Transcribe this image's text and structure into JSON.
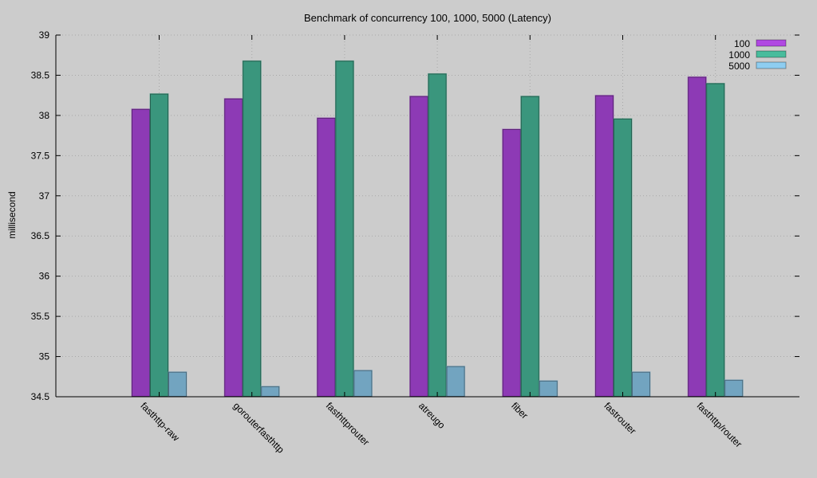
{
  "chart_data": {
    "type": "bar",
    "title": "Benchmark of concurrency 100, 1000, 5000 (Latency)",
    "xlabel": "",
    "ylabel": "millisecond",
    "ylim": [
      34.5,
      39
    ],
    "yticks": [
      "34.5",
      "35",
      "35.5",
      "36",
      "36.5",
      "37",
      "37.5",
      "38",
      "38.5",
      "39"
    ],
    "categories": [
      "fasthttp-raw",
      "gorouterfasthttp",
      "fasthttprouter",
      "atreugo",
      "fiber",
      "fastrouter",
      "fasthttp/router"
    ],
    "series": [
      {
        "name": "100",
        "color": "#b048e2",
        "values": [
          38.08,
          38.21,
          37.97,
          38.24,
          37.83,
          38.25,
          38.48
        ]
      },
      {
        "name": "1000",
        "color": "#48bc9c",
        "values": [
          38.27,
          38.68,
          38.68,
          38.52,
          38.24,
          37.96,
          38.4
        ]
      },
      {
        "name": "5000",
        "color": "#8ecdf0",
        "values": [
          34.81,
          34.63,
          34.83,
          34.88,
          34.7,
          34.81,
          34.71
        ]
      }
    ],
    "grid": true,
    "legend_position": "top-right"
  }
}
